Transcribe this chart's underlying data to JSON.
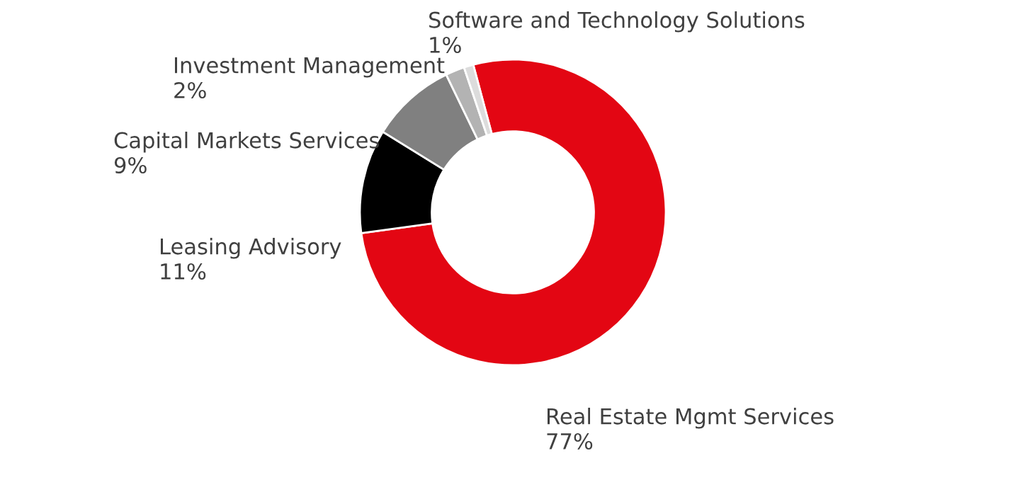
{
  "chart_data": {
    "type": "donut",
    "categories": [
      "Real Estate Mgmt Services",
      "Leasing Advisory",
      "Capital Markets Services",
      "Investment Management",
      "Software and Technology Solutions"
    ],
    "values": [
      77,
      11,
      9,
      2,
      1
    ],
    "value_labels": [
      "77%",
      "11%",
      "9%",
      "2%",
      "1%"
    ],
    "colors": [
      "#e30613",
      "#000000",
      "#808080",
      "#b3b3b3",
      "#dcdcdc"
    ]
  }
}
